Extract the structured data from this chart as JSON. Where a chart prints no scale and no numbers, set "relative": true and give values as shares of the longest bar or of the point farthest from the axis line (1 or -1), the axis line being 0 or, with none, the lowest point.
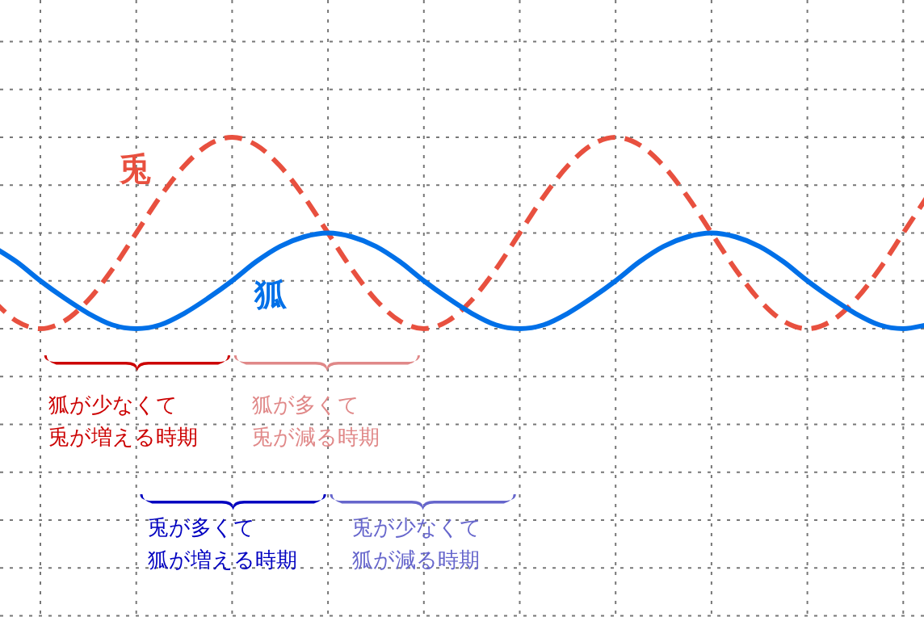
{
  "chart_data": {
    "type": "line",
    "relative": true,
    "grid": true,
    "categories": [
      null,
      null,
      null,
      null,
      null,
      null,
      null,
      null,
      null,
      null,
      null,
      null,
      null,
      null,
      null,
      null,
      null,
      null,
      null,
      null,
      null,
      null,
      null,
      null,
      null,
      null,
      null,
      null,
      null,
      null,
      null,
      null,
      null,
      null,
      null,
      null,
      null,
      null,
      null,
      null
    ],
    "series": [
      {
        "name": "兎",
        "color": "#e8503f",
        "line_style": "dashed",
        "values": [
          0.15,
          0.04,
          0,
          0.04,
          0.15,
          0.31,
          0.5,
          0.69,
          0.85,
          0.96,
          1,
          0.96,
          0.85,
          0.69,
          0.5,
          0.31,
          0.15,
          0.04,
          0,
          0.04,
          0.15,
          0.31,
          0.5,
          0.69,
          0.85,
          0.96,
          1,
          0.96,
          0.85,
          0.69,
          0.5,
          0.31,
          0.15,
          0.04,
          0,
          0.04,
          0.15,
          0.31,
          0.5,
          0.69
        ]
      },
      {
        "name": "狐",
        "color": "#0070e8",
        "line_style": "solid",
        "values": [
          0.43,
          0.35,
          0.25,
          0.16,
          0.08,
          0.02,
          0,
          0.02,
          0.08,
          0.16,
          0.25,
          0.35,
          0.43,
          0.48,
          0.5,
          0.48,
          0.43,
          0.35,
          0.25,
          0.16,
          0.08,
          0.02,
          0,
          0.02,
          0.08,
          0.16,
          0.25,
          0.35,
          0.43,
          0.48,
          0.5,
          0.48,
          0.43,
          0.35,
          0.25,
          0.16,
          0.08,
          0.02,
          0,
          0.02
        ]
      }
    ],
    "annotations": [
      "狐が少なくて兎が増える時期",
      "狐が多くて兎が減る時期",
      "兎が多くて狐が増える時期",
      "兎が少なくて狐が減る時期"
    ]
  }
}
